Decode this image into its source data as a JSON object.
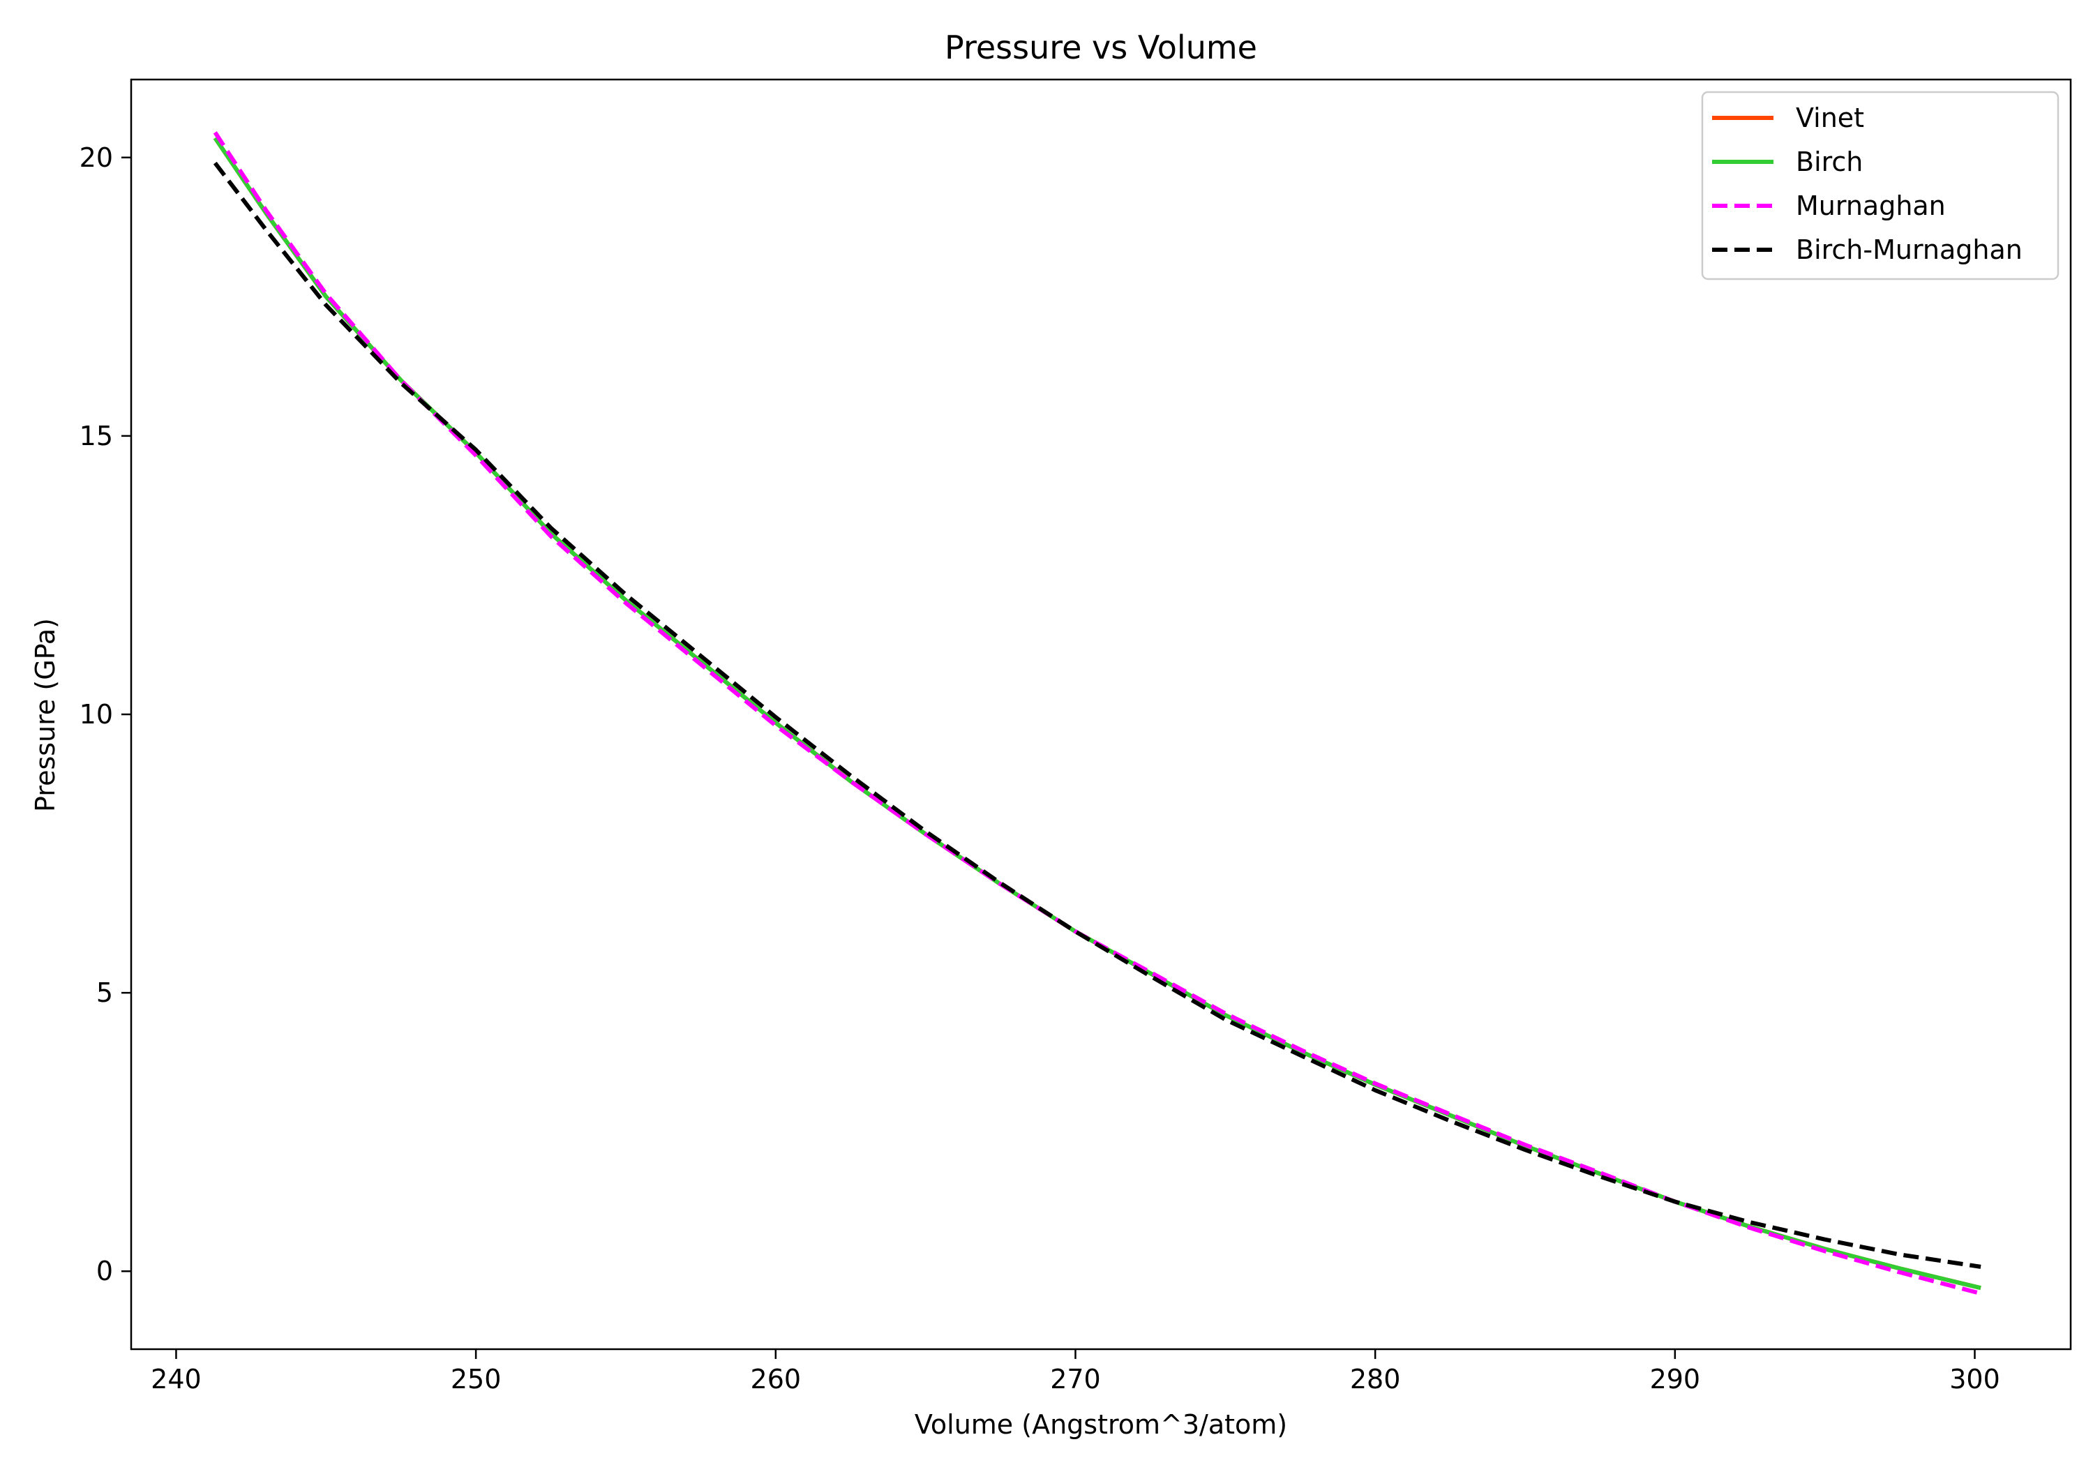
{
  "chart_data": {
    "type": "line",
    "title": "Pressure vs Volume",
    "xlabel": "Volume (Angstrom^3/atom)",
    "ylabel": "Pressure (GPa)",
    "xlim": [
      238.5,
      303.2
    ],
    "ylim": [
      -1.4,
      21.4
    ],
    "xticks": [
      240,
      250,
      260,
      270,
      280,
      290,
      300
    ],
    "yticks": [
      0,
      5,
      10,
      15,
      20
    ],
    "grid": false,
    "legend_position": "top-right",
    "x": [
      241.3,
      243.0,
      245.0,
      247.5,
      250.0,
      252.5,
      255.0,
      257.5,
      260.0,
      262.5,
      265.0,
      267.5,
      270.0,
      272.5,
      275.0,
      277.5,
      280.0,
      282.5,
      285.0,
      287.5,
      290.0,
      292.5,
      295.0,
      297.5,
      300.2
    ],
    "series": [
      {
        "name": "Vinet",
        "color": "#ff4500",
        "dash": "solid",
        "values": [
          20.35,
          19.0,
          17.5,
          16.0,
          14.7,
          13.25,
          12.05,
          10.95,
          9.85,
          8.8,
          7.85,
          6.95,
          6.1,
          5.35,
          4.6,
          3.95,
          3.35,
          2.8,
          2.25,
          1.75,
          1.25,
          0.8,
          0.4,
          0.05,
          -0.3
        ]
      },
      {
        "name": "Birch",
        "color": "#32cd32",
        "dash": "solid",
        "values": [
          20.35,
          19.0,
          17.5,
          16.0,
          14.7,
          13.25,
          12.05,
          10.95,
          9.85,
          8.8,
          7.85,
          6.95,
          6.1,
          5.35,
          4.6,
          3.95,
          3.35,
          2.8,
          2.25,
          1.75,
          1.25,
          0.8,
          0.4,
          0.05,
          -0.3
        ]
      },
      {
        "name": "Murnaghan",
        "color": "#ff00ff",
        "dash": "dashed",
        "values": [
          20.45,
          19.05,
          17.55,
          16.0,
          14.65,
          13.2,
          12.0,
          10.9,
          9.8,
          8.8,
          7.85,
          6.95,
          6.1,
          5.37,
          4.63,
          3.98,
          3.37,
          2.82,
          2.27,
          1.77,
          1.25,
          0.78,
          0.36,
          -0.02,
          -0.4
        ]
      },
      {
        "name": "Birch-Murnaghan",
        "color": "#000000",
        "dash": "dashed",
        "values": [
          19.9,
          18.7,
          17.35,
          15.95,
          14.75,
          13.35,
          12.15,
          11.05,
          9.95,
          8.9,
          7.9,
          6.97,
          6.1,
          5.3,
          4.52,
          3.88,
          3.25,
          2.7,
          2.18,
          1.7,
          1.25,
          0.88,
          0.57,
          0.3,
          0.08
        ]
      }
    ]
  }
}
